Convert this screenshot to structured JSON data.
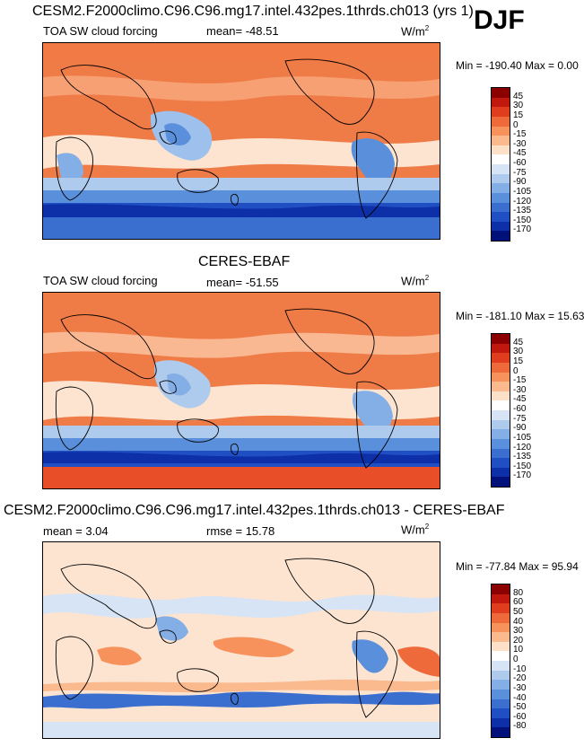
{
  "season": "DJF",
  "panels": [
    {
      "id": "model",
      "title": "CESM2.F2000climo.C96.C96.mg17.intel.432pes.1thrds.ch013 (yrs 1)",
      "left_label": "TOA SW cloud forcing",
      "center_label": "mean= -48.51",
      "units": "W/m",
      "units_sup": "2",
      "minmax": "Min = -190.40 Max =   0.00",
      "colorbar_levels": [
        "45",
        "30",
        "15",
        "0",
        "-15",
        "-30",
        "-45",
        "-60",
        "-75",
        "-90",
        "-105",
        "-120",
        "-135",
        "-150",
        "-170"
      ],
      "colorbar_colors": [
        "#8b0000",
        "#c0180c",
        "#e03c1e",
        "#ef6a3a",
        "#f7925c",
        "#fbb98e",
        "#fde0c8",
        "#ffffff",
        "#d6e4f5",
        "#aecbee",
        "#84aee6",
        "#5a8fdb",
        "#3a6fd0",
        "#1f4fc2",
        "#0d2fa8",
        "#02117a"
      ],
      "chart_data": {
        "type": "heatmap",
        "title": "TOA SW cloud forcing",
        "mean": -48.51,
        "min": -190.4,
        "max": 0.0,
        "units": "W/m2",
        "levels": [
          45,
          30,
          15,
          0,
          -15,
          -30,
          -45,
          -60,
          -75,
          -90,
          -105,
          -120,
          -135,
          -150,
          -170
        ],
        "note": "Global lat-lon map, Pacific-centered"
      }
    },
    {
      "id": "obs",
      "title": "CERES-EBAF",
      "left_label": "TOA SW cloud forcing",
      "center_label": "mean= -51.55",
      "units": "W/m",
      "units_sup": "2",
      "minmax": "Min = -181.10 Max =  15.63",
      "colorbar_levels": [
        "45",
        "30",
        "15",
        "0",
        "-15",
        "-30",
        "-45",
        "-60",
        "-75",
        "-90",
        "-105",
        "-120",
        "-135",
        "-150",
        "-170"
      ],
      "colorbar_colors": [
        "#8b0000",
        "#c0180c",
        "#e03c1e",
        "#ef6a3a",
        "#f7925c",
        "#fbb98e",
        "#fde0c8",
        "#ffffff",
        "#d6e4f5",
        "#aecbee",
        "#84aee6",
        "#5a8fdb",
        "#3a6fd0",
        "#1f4fc2",
        "#0d2fa8",
        "#02117a"
      ],
      "chart_data": {
        "type": "heatmap",
        "title": "TOA SW cloud forcing",
        "mean": -51.55,
        "min": -181.1,
        "max": 15.63,
        "units": "W/m2",
        "levels": [
          45,
          30,
          15,
          0,
          -15,
          -30,
          -45,
          -60,
          -75,
          -90,
          -105,
          -120,
          -135,
          -150,
          -170
        ]
      }
    },
    {
      "id": "diff",
      "title": "CESM2.F2000climo.C96.C96.mg17.intel.432pes.1thrds.ch013 - CERES-EBAF",
      "left_label": "mean =   3.04",
      "center_label": "rmse =  15.78",
      "units": "W/m",
      "units_sup": "2",
      "minmax": "Min = -77.84 Max =  95.94",
      "colorbar_levels": [
        "80",
        "60",
        "50",
        "40",
        "30",
        "20",
        "10",
        "0",
        "-10",
        "-20",
        "-30",
        "-40",
        "-50",
        "-60",
        "-80"
      ],
      "colorbar_colors": [
        "#8b0000",
        "#c0180c",
        "#e03c1e",
        "#ef6a3a",
        "#f7925c",
        "#fbb98e",
        "#fde0c8",
        "#ffffff",
        "#d6e4f5",
        "#aecbee",
        "#84aee6",
        "#5a8fdb",
        "#3a6fd0",
        "#1f4fc2",
        "#0d2fa8",
        "#02117a"
      ],
      "chart_data": {
        "type": "heatmap",
        "title": "Model minus CERES-EBAF",
        "mean": 3.04,
        "rmse": 15.78,
        "min": -77.84,
        "max": 95.94,
        "units": "W/m2",
        "levels": [
          80,
          60,
          50,
          40,
          30,
          20,
          10,
          0,
          -10,
          -20,
          -30,
          -40,
          -50,
          -60,
          -80
        ]
      }
    }
  ]
}
